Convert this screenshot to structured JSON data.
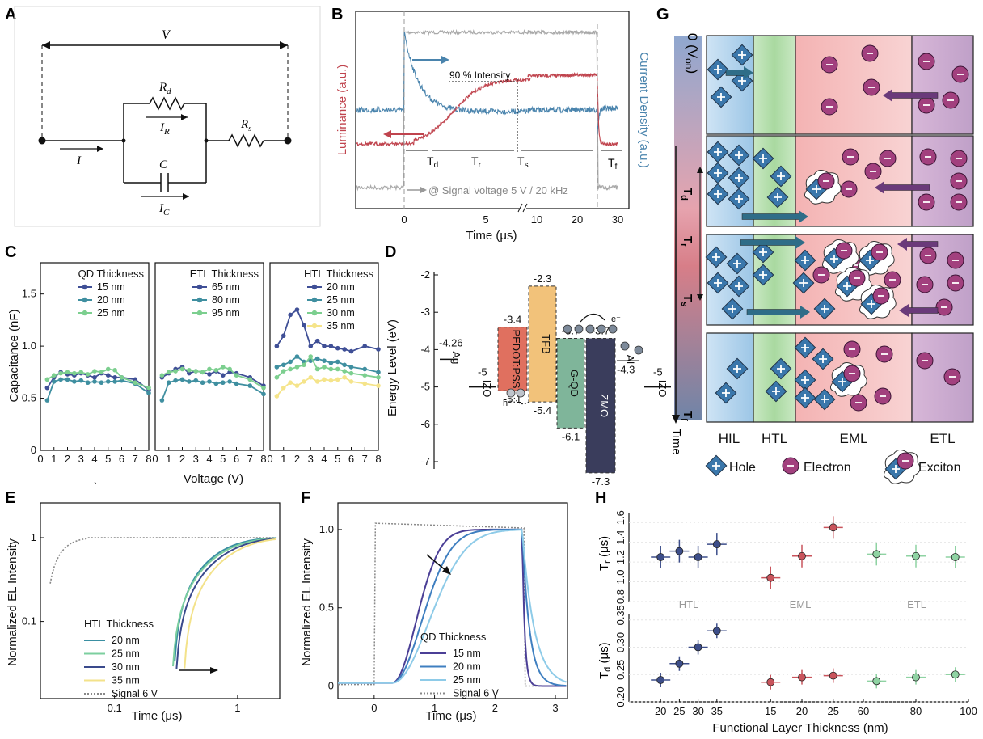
{
  "panels": {
    "A": "A",
    "B": "B",
    "C": "C",
    "D": "D",
    "E": "E",
    "F": "F",
    "G": "G",
    "H": "H"
  },
  "circuit": {
    "V": "V",
    "Rd": "R",
    "Rd_sub": "d",
    "IR": "I",
    "IR_sub": "R",
    "Rs": "R",
    "Rs_sub": "s",
    "I": "I",
    "C": "C",
    "IC": "I",
    "IC_sub": "C"
  },
  "panelB": {
    "xlabel": "Time (μs)",
    "ylabel_left": "Luminance (a.u.)",
    "ylabel_right": "Current Density (a.u.)",
    "intensity_note": "90 % Intensity",
    "signal_note": "@ Signal voltage 5 V / 20 kHz",
    "ticks": [
      "0",
      "5",
      "10",
      "20",
      "30"
    ],
    "Td": "T",
    "Td_sub": "d",
    "Tr": "T",
    "Tr_sub": "r",
    "Ts": "T",
    "Ts_sub": "s",
    "Tf": "T",
    "Tf_sub": "f",
    "colors": {
      "lum": "#c0444e",
      "cur": "#4a84ad",
      "sig": "#a9a9a9"
    }
  },
  "panelC": {
    "ylabel": "Capacitance (nF)",
    "xlabel": "Voltage (V)",
    "yticks": [
      "0",
      "0.5",
      "1.0",
      "1.5"
    ],
    "xticks": [
      "0",
      "1",
      "2",
      "3",
      "4",
      "5",
      "6",
      "7",
      "8"
    ],
    "groups": [
      {
        "title": "QD Thickness",
        "items": [
          {
            "label": "15 nm",
            "color": "#3f4f96"
          },
          {
            "label": "20 nm",
            "color": "#3f8fa0"
          },
          {
            "label": "25 nm",
            "color": "#7ccf8f"
          }
        ]
      },
      {
        "title": "ETL Thickness",
        "items": [
          {
            "label": "65 nm",
            "color": "#3f4f96"
          },
          {
            "label": "80 nm",
            "color": "#3f8fa0"
          },
          {
            "label": "95 nm",
            "color": "#7ccf8f"
          }
        ]
      },
      {
        "title": "HTL Thickness",
        "items": [
          {
            "label": "20 nm",
            "color": "#3f4f96"
          },
          {
            "label": "25 nm",
            "color": "#3f8fa0"
          },
          {
            "label": "30 nm",
            "color": "#7ccf8f"
          },
          {
            "label": "35 nm",
            "color": "#f5e48a"
          }
        ]
      }
    ]
  },
  "panelD": {
    "ylabel": "Energy Level (eV)",
    "yticks": [
      "-2",
      "-3",
      "-4",
      "-5",
      "-6",
      "-7"
    ],
    "layers": [
      {
        "name": "Ag",
        "top": "-4.26",
        "color": "#ffffff"
      },
      {
        "name": "IZO",
        "top": "-5",
        "color": "#ffffff"
      },
      {
        "name": "PEDOT:PSS",
        "top": "-3.4",
        "bottom": "-5.1",
        "color": "#e0705f"
      },
      {
        "name": "TFB",
        "top": "-2.3",
        "bottom": "-5.4",
        "color": "#f2c27a"
      },
      {
        "name": "G-QD",
        "top": "-3.7",
        "bottom": "-6.1",
        "color": "#7fb59a"
      },
      {
        "name": "ZMO",
        "top": "-3.7",
        "bottom": "-7.3",
        "color": "#3a3d5c"
      },
      {
        "name": "Al",
        "top": "-4.3",
        "color": "#ffffff"
      },
      {
        "name": "IZO2",
        "label": "IZO",
        "top": "-5",
        "color": "#ffffff"
      }
    ],
    "e_label": "e⁻",
    "h_label": "h⁺"
  },
  "panelE": {
    "ylabel": "Normalized EL Intensity",
    "xlabel": "Time (μs)",
    "yticks": [
      "0.1",
      "1"
    ],
    "xticks": [
      "0.1",
      "1"
    ],
    "legend_title": "HTL Thickness",
    "items": [
      {
        "label": "20 nm",
        "color": "#3a8fa2"
      },
      {
        "label": "25 nm",
        "color": "#7ccf9f"
      },
      {
        "label": "30 nm",
        "color": "#3a4a8c"
      },
      {
        "label": "35 nm",
        "color": "#f3e28a"
      },
      {
        "label": "Signal 6 V",
        "color": "#888888"
      }
    ]
  },
  "panelF": {
    "ylabel": "Normalized EL Intensity",
    "xlabel": "Time (μs)",
    "yticks": [
      "0",
      "0.5",
      "1.0"
    ],
    "xticks": [
      "0",
      "1",
      "2",
      "3"
    ],
    "legend_title": "QD Thickness",
    "items": [
      {
        "label": "15 nm",
        "color": "#4b3f96"
      },
      {
        "label": "20 nm",
        "color": "#3f7fc0"
      },
      {
        "label": "25 nm",
        "color": "#8ecbe8"
      },
      {
        "label": "Signal 6 V",
        "color": "#888888"
      }
    ]
  },
  "panelG": {
    "v_on": "0 (V",
    "v_on_sub": "on",
    "v_on_close": ")",
    "Td": "T",
    "Td_sub": "d",
    "Tr": "T",
    "Tr_sub": "r",
    "Ts": "T",
    "Ts_sub": "s",
    "Tf": "T",
    "Tf_sub": "f",
    "time": "Time",
    "layers": [
      "HIL",
      "HTL",
      "EML",
      "ETL"
    ],
    "legend": {
      "hole": "Hole",
      "electron": "Electron",
      "exciton": "Exciton"
    }
  },
  "panelH": {
    "ylabel_top": "T",
    "ylabel_top_sub": "r",
    "ylabel_top_unit": " (μs)",
    "ylabel_bot": "T",
    "ylabel_bot_sub": "d",
    "ylabel_bot_unit": " (μs)",
    "xlabel": "Functional Layer Thickness (nm)",
    "top_yticks": [
      "0.8",
      "1.0",
      "1.2",
      "1.4",
      "1.6"
    ],
    "bot_yticks": [
      "0.20",
      "0.25",
      "0.30",
      "0.35"
    ],
    "groups": [
      "HTL",
      "EML",
      "ETL"
    ],
    "xticks": [
      "20",
      "25",
      "30",
      "35",
      "15",
      "20",
      "25",
      "60",
      "80",
      "100"
    ],
    "colors": {
      "HTL": "#3d4e8a",
      "EML": "#c9545c",
      "ETL": "#8fd3a3"
    }
  },
  "chart_data": [
    {
      "type": "line",
      "panel": "C-QD",
      "xlabel": "Voltage (V)",
      "ylabel": "Capacitance (nF)",
      "ylim": [
        0,
        1.8
      ],
      "x": [
        0.5,
        1,
        1.5,
        2,
        2.5,
        3,
        3.5,
        4,
        4.5,
        5,
        5.5,
        6,
        7,
        8
      ],
      "series": [
        {
          "name": "15 nm",
          "values": [
            0.6,
            0.7,
            0.75,
            0.73,
            0.72,
            0.74,
            0.72,
            0.7,
            0.74,
            0.72,
            0.7,
            0.7,
            0.68,
            0.58
          ]
        },
        {
          "name": "20 nm",
          "values": [
            0.48,
            0.66,
            0.68,
            0.68,
            0.66,
            0.67,
            0.65,
            0.66,
            0.65,
            0.66,
            0.66,
            0.67,
            0.64,
            0.55
          ]
        },
        {
          "name": "25 nm",
          "values": [
            0.68,
            0.72,
            0.74,
            0.75,
            0.74,
            0.75,
            0.73,
            0.76,
            0.75,
            0.78,
            0.77,
            0.7,
            0.65,
            0.6
          ]
        }
      ]
    },
    {
      "type": "line",
      "panel": "C-ETL",
      "xlabel": "Voltage (V)",
      "ylabel": "Capacitance (nF)",
      "ylim": [
        0,
        1.8
      ],
      "x": [
        0.5,
        1,
        1.5,
        2,
        2.5,
        3,
        3.5,
        4,
        4.5,
        5,
        5.5,
        6,
        7,
        8
      ],
      "series": [
        {
          "name": "65 nm",
          "values": [
            0.7,
            0.74,
            0.78,
            0.8,
            0.74,
            0.76,
            0.75,
            0.73,
            0.76,
            0.72,
            0.75,
            0.74,
            0.7,
            0.62
          ]
        },
        {
          "name": "80 nm",
          "values": [
            0.48,
            0.65,
            0.67,
            0.68,
            0.66,
            0.67,
            0.65,
            0.66,
            0.64,
            0.65,
            0.66,
            0.64,
            0.62,
            0.54
          ]
        },
        {
          "name": "95 nm",
          "values": [
            0.72,
            0.75,
            0.76,
            0.78,
            0.77,
            0.76,
            0.75,
            0.78,
            0.77,
            0.8,
            0.78,
            0.72,
            0.68,
            0.6
          ]
        }
      ]
    },
    {
      "type": "line",
      "panel": "C-HTL",
      "xlabel": "Voltage (V)",
      "ylabel": "Capacitance (nF)",
      "ylim": [
        0,
        1.8
      ],
      "x": [
        0.5,
        1,
        1.5,
        2,
        2.5,
        3,
        3.5,
        4,
        4.5,
        5,
        5.5,
        6,
        7,
        8
      ],
      "series": [
        {
          "name": "20 nm",
          "values": [
            1.0,
            1.1,
            1.3,
            1.35,
            1.2,
            1.0,
            1.05,
            1.0,
            1.0,
            0.98,
            0.97,
            0.95,
            1.0,
            0.97
          ]
        },
        {
          "name": "25 nm",
          "values": [
            0.8,
            0.82,
            0.85,
            0.9,
            0.85,
            0.86,
            0.88,
            0.86,
            0.84,
            0.85,
            0.82,
            0.8,
            0.78,
            0.75
          ]
        },
        {
          "name": "30 nm",
          "values": [
            0.7,
            0.76,
            0.78,
            0.8,
            0.82,
            0.9,
            0.78,
            0.8,
            0.78,
            0.78,
            0.76,
            0.74,
            0.72,
            0.7
          ]
        },
        {
          "name": "35 nm",
          "values": [
            0.52,
            0.6,
            0.65,
            0.62,
            0.66,
            0.7,
            0.66,
            0.68,
            0.67,
            0.68,
            0.7,
            0.66,
            0.64,
            0.62
          ]
        }
      ]
    },
    {
      "type": "line",
      "panel": "E",
      "xlabel": "Time (μs)",
      "ylabel": "Normalized EL Intensity",
      "xscale": "log",
      "yscale": "log",
      "x": [
        0.3,
        0.4,
        0.5,
        0.7,
        1,
        1.5,
        2
      ],
      "series": [
        {
          "name": "20 nm",
          "values": [
            0.04,
            0.08,
            0.18,
            0.4,
            0.7,
            0.9,
            0.96
          ]
        },
        {
          "name": "25 nm",
          "values": [
            0.03,
            0.07,
            0.16,
            0.38,
            0.68,
            0.88,
            0.95
          ]
        },
        {
          "name": "30 nm",
          "values": [
            0.025,
            0.06,
            0.14,
            0.35,
            0.65,
            0.86,
            0.95
          ]
        },
        {
          "name": "35 nm",
          "values": [
            0.012,
            0.035,
            0.08,
            0.22,
            0.5,
            0.78,
            0.92
          ]
        },
        {
          "name": "Signal 6 V",
          "values": [
            1,
            1,
            1,
            1,
            1,
            1,
            1
          ]
        }
      ]
    },
    {
      "type": "line",
      "panel": "F",
      "xlabel": "Time (μs)",
      "ylabel": "Normalized EL Intensity",
      "ylim": [
        -0.05,
        1.15
      ],
      "x": [
        0,
        0.3,
        0.6,
        0.9,
        1.2,
        1.5,
        1.8,
        2.1,
        2.4,
        2.6,
        3
      ],
      "series": [
        {
          "name": "15 nm",
          "values": [
            0,
            0.05,
            0.5,
            0.82,
            0.9,
            0.95,
            0.98,
            1,
            1,
            0.1,
            0
          ]
        },
        {
          "name": "20 nm",
          "values": [
            0,
            0.04,
            0.45,
            0.75,
            0.86,
            0.92,
            0.96,
            0.99,
            1,
            0.15,
            0
          ]
        },
        {
          "name": "25 nm",
          "values": [
            0,
            0.03,
            0.38,
            0.65,
            0.78,
            0.86,
            0.92,
            0.96,
            1,
            0.3,
            0.05
          ]
        },
        {
          "name": "Signal 6 V",
          "values": [
            0,
            1,
            1,
            1,
            1,
            1,
            1,
            1,
            1,
            0,
            0
          ]
        }
      ]
    },
    {
      "type": "scatter",
      "panel": "H-Tr",
      "ylabel": "Tr (μs)",
      "ylim": [
        0.8,
        1.7
      ],
      "series": [
        {
          "name": "HTL",
          "x": [
            20,
            25,
            30,
            35
          ],
          "values": [
            1.25,
            1.31,
            1.25,
            1.38
          ]
        },
        {
          "name": "EML",
          "x": [
            15,
            20,
            25
          ],
          "values": [
            1.04,
            1.26,
            1.55
          ]
        },
        {
          "name": "ETL",
          "x": [
            65,
            80,
            95
          ],
          "values": [
            1.28,
            1.26,
            1.25
          ]
        }
      ]
    },
    {
      "type": "scatter",
      "panel": "H-Td",
      "ylabel": "Td (μs)",
      "ylim": [
        0.2,
        0.36
      ],
      "series": [
        {
          "name": "HTL",
          "x": [
            20,
            25,
            30,
            35
          ],
          "values": [
            0.24,
            0.27,
            0.3,
            0.33
          ]
        },
        {
          "name": "EML",
          "x": [
            15,
            20,
            25
          ],
          "values": [
            0.236,
            0.245,
            0.248
          ]
        },
        {
          "name": "ETL",
          "x": [
            65,
            80,
            95
          ],
          "values": [
            0.238,
            0.245,
            0.25
          ]
        }
      ]
    }
  ]
}
